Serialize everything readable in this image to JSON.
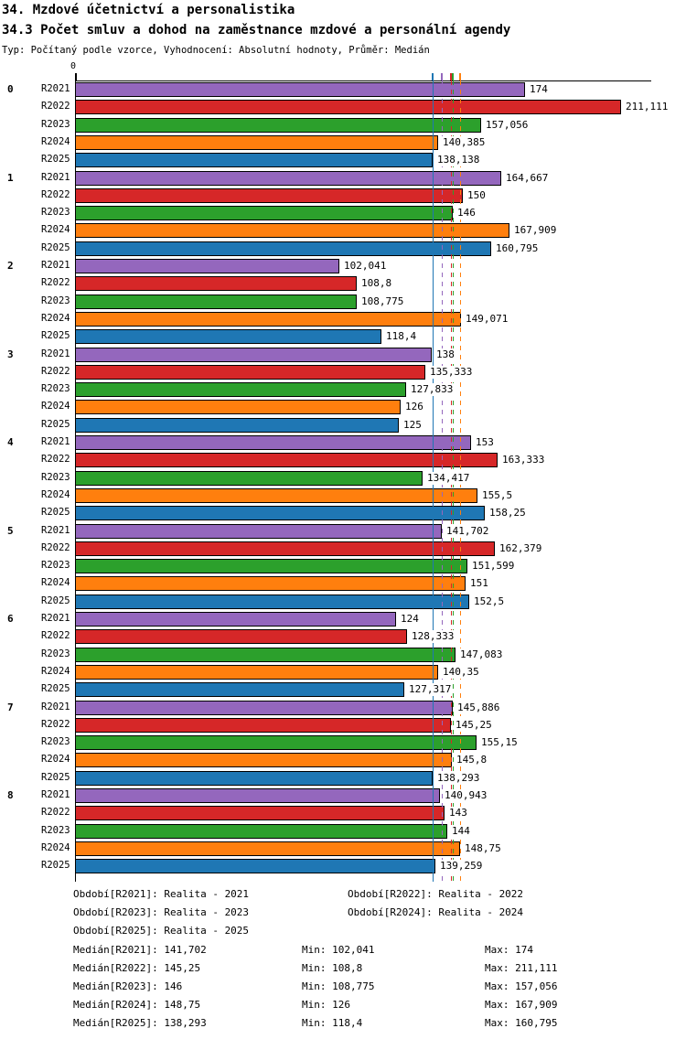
{
  "header": {
    "title_line1": "34. Mzdové účetnictví a personalistika",
    "title_line2": "34.3 Počet smluv a dohod na zaměstnance mzdové a personální agendy",
    "meta": "Typ: Počítaný podle vzorce, Vyhodnocení: Absolutní hodnoty, Průměr: Medián"
  },
  "chart_data": {
    "type": "bar",
    "orientation": "horizontal",
    "origin_tick_label": "0",
    "xlim": [
      0,
      222
    ],
    "grid": false,
    "categories": [
      "0",
      "1",
      "2",
      "3",
      "4",
      "5",
      "6",
      "7",
      "8"
    ],
    "series": [
      {
        "name": "R2021",
        "color": "#9467bd",
        "values": [
          174,
          164.667,
          102.041,
          138,
          153,
          141.702,
          124,
          145.886,
          140.943
        ],
        "value_labels": [
          "174",
          "164,667",
          "102,041",
          "138",
          "153",
          "141,702",
          "124",
          "145,886",
          "140,943"
        ],
        "median": 141.702
      },
      {
        "name": "R2022",
        "color": "#d62728",
        "values": [
          211.111,
          150,
          108.8,
          135.333,
          163.333,
          162.379,
          128.333,
          145.25,
          143
        ],
        "value_labels": [
          "211,111",
          "150",
          "108,8",
          "135,333",
          "163,333",
          "162,379",
          "128,333",
          "145,25",
          "143"
        ],
        "median": 145.25
      },
      {
        "name": "R2023",
        "color": "#2ca02c",
        "values": [
          157.056,
          146,
          108.775,
          127.833,
          134.417,
          151.599,
          147.083,
          155.15,
          144
        ],
        "value_labels": [
          "157,056",
          "146",
          "108,775",
          "127,833",
          "134,417",
          "151,599",
          "147,083",
          "155,15",
          "144"
        ],
        "median": 146
      },
      {
        "name": "R2024",
        "color": "#ff7f0e",
        "values": [
          140.385,
          167.909,
          149.071,
          126,
          155.5,
          151,
          140.35,
          145.8,
          148.75
        ],
        "value_labels": [
          "140,385",
          "167,909",
          "149,071",
          "126",
          "155,5",
          "151",
          "140,35",
          "145,8",
          "148,75"
        ],
        "median": 148.75
      },
      {
        "name": "R2025",
        "color": "#1f77b4",
        "values": [
          138.138,
          160.795,
          118.4,
          125,
          158.25,
          152.5,
          127.317,
          138.293,
          139.259
        ],
        "value_labels": [
          "138,138",
          "160,795",
          "118,4",
          "125",
          "158,25",
          "152,5",
          "127,317",
          "138,293",
          "139,259"
        ],
        "median": 138.293
      }
    ],
    "legend": [
      "Období[R2021]: Realita - 2021",
      "Období[R2022]: Realita - 2022",
      "Období[R2023]: Realita - 2023",
      "Období[R2024]: Realita - 2024",
      "Období[R2025]: Realita - 2025"
    ],
    "stats": [
      {
        "median": "Medián[R2021]: 141,702",
        "min": "Min: 102,041",
        "max": "Max: 174"
      },
      {
        "median": "Medián[R2022]: 145,25",
        "min": "Min: 108,8",
        "max": "Max: 211,111"
      },
      {
        "median": "Medián[R2023]: 146",
        "min": "Min: 108,775",
        "max": "Max: 157,056"
      },
      {
        "median": "Medián[R2024]: 148,75",
        "min": "Min: 126",
        "max": "Max: 167,909"
      },
      {
        "median": "Medián[R2025]: 138,293",
        "min": "Min: 118,4",
        "max": "Max: 160,795"
      }
    ]
  }
}
